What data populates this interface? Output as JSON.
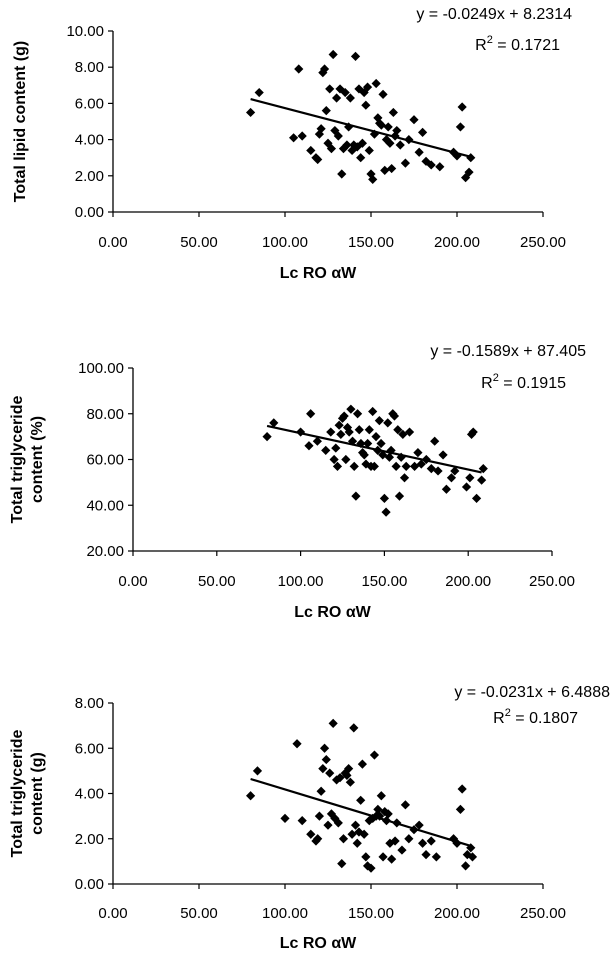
{
  "chart_data": [
    {
      "type": "scatter",
      "xlabel": "Lc RO αW",
      "ylabel": "Total lipid content (g)",
      "xlim": [
        0,
        250
      ],
      "ylim": [
        0,
        10
      ],
      "x_ticks": [
        "0.00",
        "50.00",
        "100.00",
        "150.00",
        "200.00",
        "250.00"
      ],
      "y_ticks": [
        "0.00",
        "2.00",
        "4.00",
        "6.00",
        "8.00",
        "10.00"
      ],
      "grid": false,
      "legend": "none",
      "trendline": {
        "slope": -0.0249,
        "intercept": 8.2314,
        "x_range": [
          80,
          208
        ]
      },
      "equation": "y = -0.0249x + 8.2314",
      "r2_label": "R",
      "r2_sup": "2",
      "r2_value": " = 0.1721",
      "points": [
        [
          80,
          5.5
        ],
        [
          85,
          6.6
        ],
        [
          105,
          4.1
        ],
        [
          108,
          7.9
        ],
        [
          110,
          4.2
        ],
        [
          115,
          3.4
        ],
        [
          118,
          3.0
        ],
        [
          119,
          2.9
        ],
        [
          120,
          4.3
        ],
        [
          121,
          4.6
        ],
        [
          122,
          7.7
        ],
        [
          123,
          7.9
        ],
        [
          124,
          5.6
        ],
        [
          125,
          3.8
        ],
        [
          126,
          6.8
        ],
        [
          127,
          3.5
        ],
        [
          128,
          8.7
        ],
        [
          129,
          4.5
        ],
        [
          130,
          6.3
        ],
        [
          131,
          4.2
        ],
        [
          132,
          6.8
        ],
        [
          133,
          2.1
        ],
        [
          134,
          3.5
        ],
        [
          135,
          6.6
        ],
        [
          136,
          3.7
        ],
        [
          137,
          4.7
        ],
        [
          138,
          6.3
        ],
        [
          139,
          3.4
        ],
        [
          140,
          3.7
        ],
        [
          141,
          8.6
        ],
        [
          142,
          3.6
        ],
        [
          143,
          6.8
        ],
        [
          144,
          3.0
        ],
        [
          145,
          3.8
        ],
        [
          146,
          6.6
        ],
        [
          147,
          5.9
        ],
        [
          148,
          6.9
        ],
        [
          149,
          3.4
        ],
        [
          150,
          2.1
        ],
        [
          151,
          1.8
        ],
        [
          152,
          4.3
        ],
        [
          153,
          7.1
        ],
        [
          154,
          5.2
        ],
        [
          155,
          4.9
        ],
        [
          156,
          4.8
        ],
        [
          157,
          6.5
        ],
        [
          158,
          2.3
        ],
        [
          159,
          4.0
        ],
        [
          160,
          4.7
        ],
        [
          161,
          3.8
        ],
        [
          162,
          2.4
        ],
        [
          163,
          5.5
        ],
        [
          164,
          4.2
        ],
        [
          165,
          4.5
        ],
        [
          167,
          3.7
        ],
        [
          170,
          2.7
        ],
        [
          172,
          4.0
        ],
        [
          175,
          5.1
        ],
        [
          178,
          3.3
        ],
        [
          180,
          4.4
        ],
        [
          182,
          2.8
        ],
        [
          185,
          2.6
        ],
        [
          190,
          2.5
        ],
        [
          198,
          3.3
        ],
        [
          200,
          3.1
        ],
        [
          202,
          4.7
        ],
        [
          203,
          5.8
        ],
        [
          205,
          1.9
        ],
        [
          207,
          2.2
        ],
        [
          208,
          3.0
        ]
      ]
    },
    {
      "type": "scatter",
      "xlabel": "Lc RO αW",
      "ylabel_lines": [
        "Total triglyceride",
        "content (%)"
      ],
      "xlim": [
        0,
        250
      ],
      "ylim": [
        20,
        100
      ],
      "x_ticks": [
        "0.00",
        "50.00",
        "100.00",
        "150.00",
        "200.00",
        "250.00"
      ],
      "y_ticks": [
        "20.00",
        "40.00",
        "60.00",
        "80.00",
        "100.00"
      ],
      "grid": false,
      "legend": "none",
      "trendline": {
        "slope": -0.1589,
        "intercept": 87.405,
        "x_range": [
          80,
          208
        ]
      },
      "equation": "y = -0.1589x + 87.405",
      "r2_label": "R",
      "r2_sup": "2",
      "r2_value": " = 0.1915",
      "points": [
        [
          80,
          70
        ],
        [
          84,
          76
        ],
        [
          100,
          72
        ],
        [
          105,
          66
        ],
        [
          106,
          80
        ],
        [
          110,
          68
        ],
        [
          115,
          64
        ],
        [
          118,
          72
        ],
        [
          120,
          60
        ],
        [
          121,
          65
        ],
        [
          122,
          57
        ],
        [
          123,
          75
        ],
        [
          124,
          71
        ],
        [
          125,
          78
        ],
        [
          126,
          79
        ],
        [
          127,
          60
        ],
        [
          128,
          74
        ],
        [
          129,
          72
        ],
        [
          130,
          82
        ],
        [
          131,
          68
        ],
        [
          132,
          57
        ],
        [
          133,
          44
        ],
        [
          134,
          80
        ],
        [
          135,
          73
        ],
        [
          136,
          67
        ],
        [
          137,
          63
        ],
        [
          138,
          62
        ],
        [
          139,
          58
        ],
        [
          140,
          67
        ],
        [
          141,
          73
        ],
        [
          142,
          57
        ],
        [
          143,
          81
        ],
        [
          144,
          57
        ],
        [
          145,
          70
        ],
        [
          146,
          64
        ],
        [
          147,
          77
        ],
        [
          148,
          67
        ],
        [
          149,
          62
        ],
        [
          150,
          43
        ],
        [
          151,
          37
        ],
        [
          152,
          76
        ],
        [
          153,
          61
        ],
        [
          154,
          64
        ],
        [
          155,
          80
        ],
        [
          156,
          79
        ],
        [
          157,
          57
        ],
        [
          158,
          73
        ],
        [
          159,
          44
        ],
        [
          160,
          61
        ],
        [
          161,
          71
        ],
        [
          162,
          52
        ],
        [
          163,
          57
        ],
        [
          165,
          72
        ],
        [
          168,
          57
        ],
        [
          170,
          63
        ],
        [
          172,
          58
        ],
        [
          175,
          60
        ],
        [
          178,
          56
        ],
        [
          180,
          68
        ],
        [
          182,
          55
        ],
        [
          185,
          62
        ],
        [
          187,
          47
        ],
        [
          190,
          52
        ],
        [
          192,
          55
        ],
        [
          199,
          48
        ],
        [
          201,
          52
        ],
        [
          202,
          71
        ],
        [
          203,
          72
        ],
        [
          205,
          43
        ],
        [
          208,
          51
        ],
        [
          209,
          56
        ]
      ]
    },
    {
      "type": "scatter",
      "xlabel": "Lc RO αW",
      "ylabel_lines": [
        "Total triglyceride",
        "content (g)"
      ],
      "xlim": [
        0,
        250
      ],
      "ylim": [
        0,
        8
      ],
      "x_ticks": [
        "0.00",
        "50.00",
        "100.00",
        "150.00",
        "200.00",
        "250.00"
      ],
      "y_ticks": [
        "0.00",
        "2.00",
        "4.00",
        "6.00",
        "8.00"
      ],
      "grid": false,
      "legend": "none",
      "trendline": {
        "slope": -0.0231,
        "intercept": 6.4888,
        "x_range": [
          80,
          208
        ]
      },
      "equation": "y = -0.0231x + 6.4888",
      "r2_label": "R",
      "r2_sup": "2",
      "r2_value": " = 0.1807",
      "points": [
        [
          80,
          3.9
        ],
        [
          84,
          5.0
        ],
        [
          100,
          2.9
        ],
        [
          107,
          6.2
        ],
        [
          110,
          2.8
        ],
        [
          115,
          2.2
        ],
        [
          118,
          1.9
        ],
        [
          119,
          2.0
        ],
        [
          120,
          3.0
        ],
        [
          121,
          4.1
        ],
        [
          122,
          5.1
        ],
        [
          123,
          6.0
        ],
        [
          124,
          5.5
        ],
        [
          125,
          2.6
        ],
        [
          126,
          4.9
        ],
        [
          127,
          3.1
        ],
        [
          128,
          7.1
        ],
        [
          129,
          2.9
        ],
        [
          130,
          4.6
        ],
        [
          131,
          2.7
        ],
        [
          132,
          4.7
        ],
        [
          133,
          0.9
        ],
        [
          134,
          2.0
        ],
        [
          135,
          4.9
        ],
        [
          136,
          4.8
        ],
        [
          137,
          5.1
        ],
        [
          138,
          4.5
        ],
        [
          139,
          2.2
        ],
        [
          140,
          6.9
        ],
        [
          141,
          2.6
        ],
        [
          142,
          1.8
        ],
        [
          143,
          2.3
        ],
        [
          144,
          3.7
        ],
        [
          145,
          5.3
        ],
        [
          146,
          2.2
        ],
        [
          147,
          1.2
        ],
        [
          148,
          0.8
        ],
        [
          149,
          2.8
        ],
        [
          150,
          0.7
        ],
        [
          151,
          2.9
        ],
        [
          152,
          5.7
        ],
        [
          153,
          3.0
        ],
        [
          154,
          3.3
        ],
        [
          155,
          3.0
        ],
        [
          156,
          3.9
        ],
        [
          157,
          1.2
        ],
        [
          158,
          3.2
        ],
        [
          159,
          2.8
        ],
        [
          160,
          3.1
        ],
        [
          161,
          1.8
        ],
        [
          162,
          1.1
        ],
        [
          164,
          1.9
        ],
        [
          165,
          2.7
        ],
        [
          168,
          1.5
        ],
        [
          170,
          3.5
        ],
        [
          172,
          2.0
        ],
        [
          175,
          2.4
        ],
        [
          178,
          2.6
        ],
        [
          180,
          1.8
        ],
        [
          182,
          1.3
        ],
        [
          185,
          1.9
        ],
        [
          188,
          1.2
        ],
        [
          198,
          2.0
        ],
        [
          200,
          1.8
        ],
        [
          202,
          3.3
        ],
        [
          203,
          4.2
        ],
        [
          205,
          0.8
        ],
        [
          206,
          1.3
        ],
        [
          208,
          1.6
        ],
        [
          209,
          1.2
        ]
      ]
    }
  ]
}
